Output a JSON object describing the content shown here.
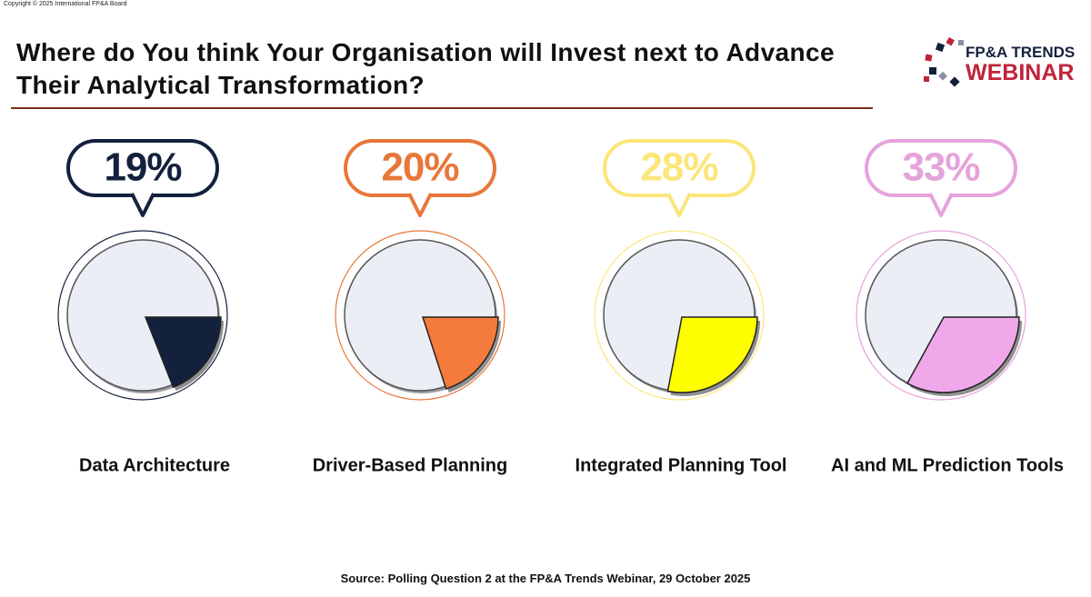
{
  "copyright": "Copyright © 2025 International FP&A Board",
  "logo": {
    "line1": "FP&A TRENDS",
    "line2": "WEBINAR"
  },
  "source": "Source: Polling Question 2 at the FP&A Trends Webinar, 29 October 2025",
  "chart_data": {
    "type": "pie",
    "title": "Where do You think Your Organisation will Invest next to Advance Their Analytical Transformation?",
    "categories": [
      "Data Architecture",
      "Driver-Based Planning",
      "Integrated Planning Tool",
      "AI and ML Prediction Tools"
    ],
    "values": [
      19,
      20,
      28,
      33
    ],
    "value_labels": [
      "19%",
      "20%",
      "28%",
      "33%"
    ],
    "colors": [
      "#14213d",
      "#f47b3b",
      "#ffff00",
      "#f0a8ea"
    ],
    "label_colors": [
      "#14213d",
      "#e8773a",
      "#fbe67a",
      "#e5a3dc"
    ]
  }
}
